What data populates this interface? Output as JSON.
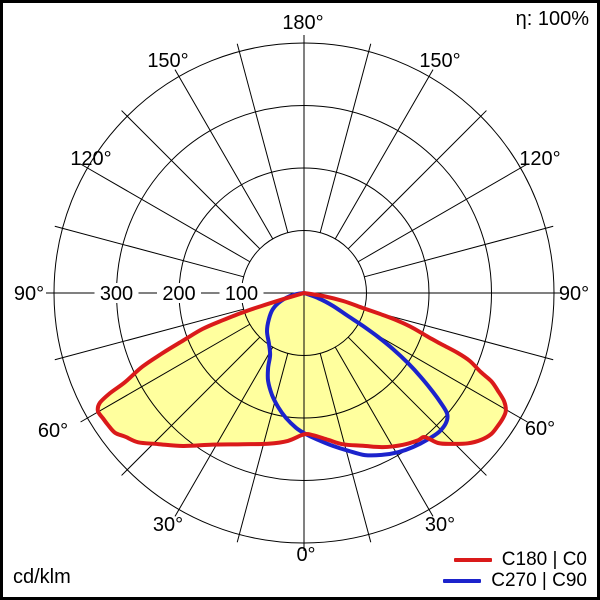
{
  "header": {
    "efficiency": "η: 100%"
  },
  "footer": {
    "unit": "cd/klm"
  },
  "legend": {
    "entries": [
      {
        "label": "C180 | C0",
        "color": "#da1a1a"
      },
      {
        "label": "C270 | C90",
        "color": "#1c23cc"
      }
    ]
  },
  "chart_data": {
    "type": "polar_luminous_intensity_distribution",
    "title": "Luminaire light distribution curve",
    "unit": "cd/klm",
    "efficiency_label": "η: 100%",
    "angle_label_step_deg": 30,
    "grid_step_deg": 15,
    "radial_axis": {
      "circle_values": [
        100,
        200,
        300,
        400
      ],
      "labeled_values": [
        300,
        200,
        100
      ],
      "max": 400
    },
    "angle_labels": [
      {
        "id": "0C",
        "label": "0°"
      },
      {
        "id": "30L",
        "label": "30°"
      },
      {
        "id": "30R",
        "label": "30°"
      },
      {
        "id": "60L",
        "label": "60°"
      },
      {
        "id": "60R",
        "label": "60°"
      },
      {
        "id": "90L",
        "label": "90°"
      },
      {
        "id": "90R",
        "label": "90°"
      },
      {
        "id": "120L",
        "label": "120°"
      },
      {
        "id": "120R",
        "label": "120°"
      },
      {
        "id": "150L",
        "label": "150°"
      },
      {
        "id": "150R",
        "label": "150°"
      },
      {
        "id": "180C",
        "label": "180°"
      }
    ],
    "colors": {
      "grid": "#000000",
      "fill": "#ffff9e",
      "c180_c0": "#da1a1a",
      "c270_c90": "#1c23cc"
    },
    "series": [
      {
        "name": "C180 | C0",
        "color_key": "c180_c0",
        "fill": true,
        "points_gamma_deg_cdklm": [
          [
            -74,
            0
          ],
          [
            -73.5,
            35
          ],
          [
            -73,
            71
          ],
          [
            -72.5,
            102
          ],
          [
            -71.5,
            137
          ],
          [
            -70.5,
            172
          ],
          [
            -68.5,
            208
          ],
          [
            -67,
            245
          ],
          [
            -65.5,
            284
          ],
          [
            -63.5,
            320
          ],
          [
            -62.7,
            349
          ],
          [
            -61.7,
            371
          ],
          [
            -60.2,
            380
          ],
          [
            -58,
            379
          ],
          [
            -56,
            378
          ],
          [
            -53.5,
            376
          ],
          [
            -51.2,
            367
          ],
          [
            -48,
            357
          ],
          [
            -44,
            336
          ],
          [
            -38.3,
            312
          ],
          [
            -31,
            283
          ],
          [
            -22,
            261
          ],
          [
            -13.4,
            248
          ],
          [
            -6.2,
            238
          ],
          [
            0,
            226
          ],
          [
            3.6,
            228
          ],
          [
            9.3,
            238
          ],
          [
            14.5,
            250
          ],
          [
            21.1,
            262
          ],
          [
            27.1,
            277
          ],
          [
            33.1,
            290
          ],
          [
            37.8,
            298
          ],
          [
            40,
            301
          ],
          [
            41.8,
            322
          ],
          [
            44.6,
            339
          ],
          [
            47.5,
            356
          ],
          [
            50.3,
            368
          ],
          [
            53,
            375
          ],
          [
            55.6,
            376
          ],
          [
            57.9,
            376
          ],
          [
            59.7,
            374
          ],
          [
            61.6,
            364
          ],
          [
            63.2,
            348
          ],
          [
            64.8,
            331
          ],
          [
            65.9,
            310
          ],
          [
            67.7,
            287
          ],
          [
            68.7,
            264
          ],
          [
            69.5,
            237
          ],
          [
            70.5,
            211
          ],
          [
            72.2,
            183
          ],
          [
            73.5,
            156
          ],
          [
            74.4,
            131
          ],
          [
            75.7,
            97
          ],
          [
            78.4,
            64
          ],
          [
            81,
            31
          ],
          [
            83,
            0
          ]
        ]
      },
      {
        "name": "C270 | C90",
        "color_key": "c270_c90",
        "fill": false,
        "points_gamma_deg_cdklm": [
          [
            -84,
            0
          ],
          [
            -79.7,
            18
          ],
          [
            -70.8,
            39
          ],
          [
            -62.7,
            56
          ],
          [
            -53.4,
            70
          ],
          [
            -44.2,
            85
          ],
          [
            -35,
            98
          ],
          [
            -28.7,
            113
          ],
          [
            -25.6,
            133
          ],
          [
            -22.2,
            152
          ],
          [
            -17.4,
            171
          ],
          [
            -12.8,
            187
          ],
          [
            -8.2,
            202
          ],
          [
            -3.4,
            216
          ],
          [
            0.8,
            226
          ],
          [
            5.4,
            236
          ],
          [
            10.7,
            249
          ],
          [
            15.6,
            262
          ],
          [
            20.6,
            277
          ],
          [
            26,
            288
          ],
          [
            30.6,
            296
          ],
          [
            35.3,
            302
          ],
          [
            40.3,
            307
          ],
          [
            44.2,
            310
          ],
          [
            47.5,
            308
          ],
          [
            49.8,
            300
          ],
          [
            51.2,
            281
          ],
          [
            52.5,
            260
          ],
          [
            54.3,
            230
          ],
          [
            56,
            201
          ],
          [
            57.8,
            168
          ],
          [
            59.3,
            138
          ],
          [
            60.8,
            108
          ],
          [
            62.4,
            79
          ],
          [
            65.9,
            51
          ],
          [
            70.3,
            24
          ],
          [
            73,
            0
          ]
        ]
      }
    ]
  }
}
